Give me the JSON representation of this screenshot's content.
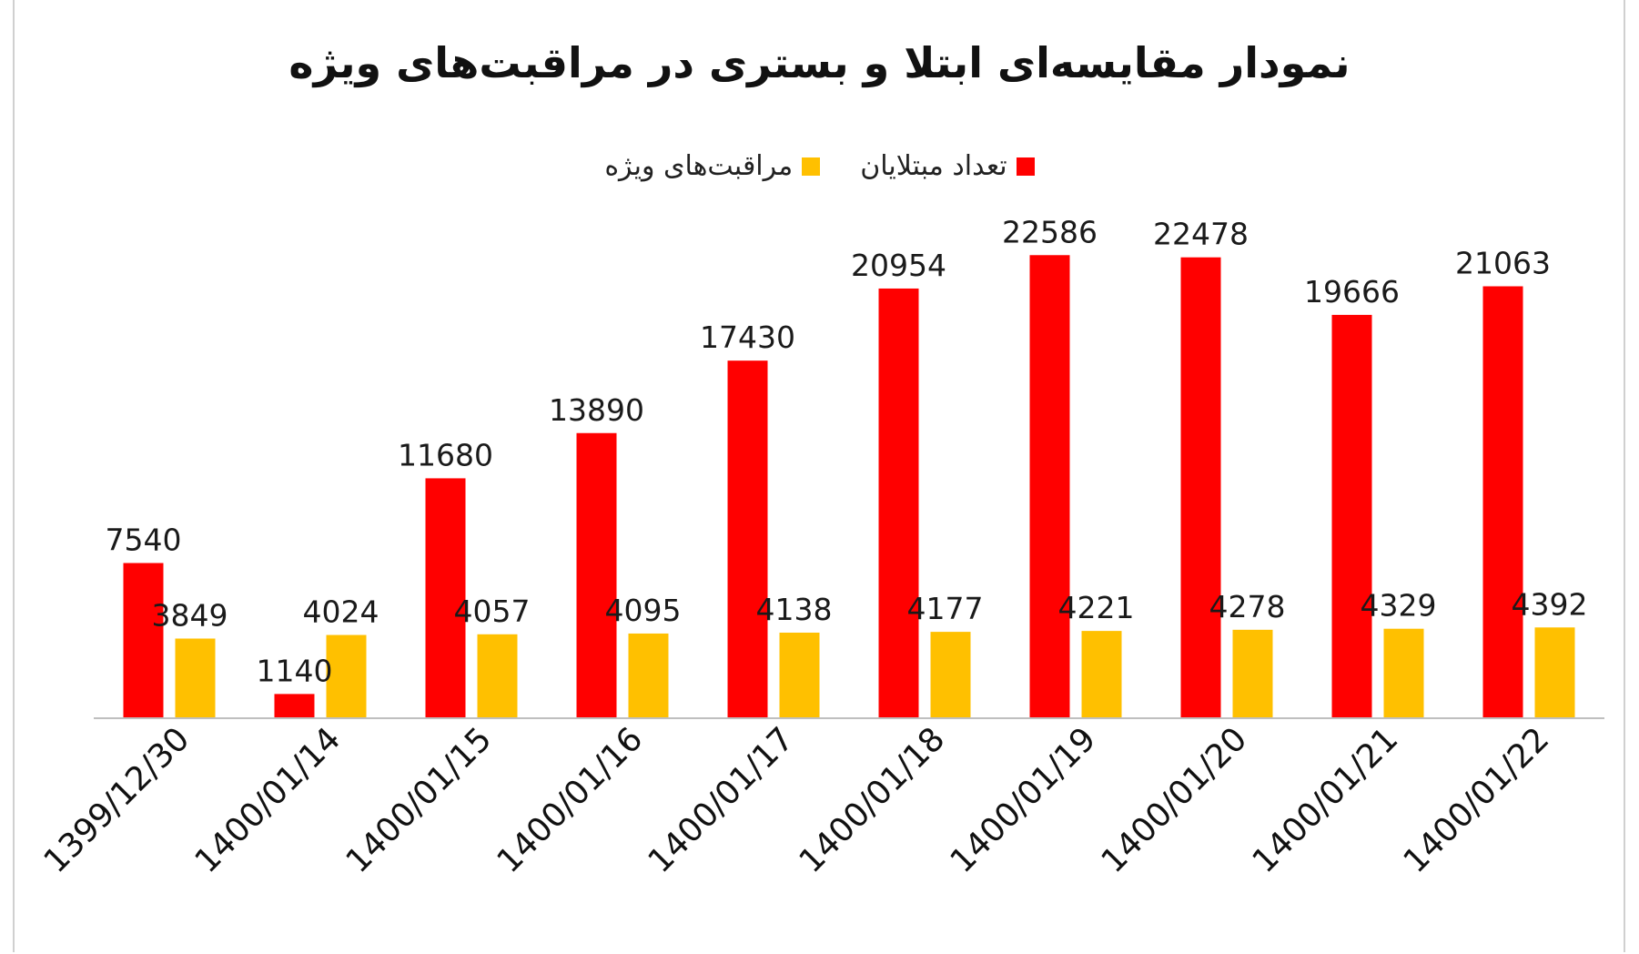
{
  "chart_data": {
    "type": "bar",
    "title": "نمودار مقایسه‌ای ابتلا و بستری در مراقبت‌های ویژه",
    "xlabel": "",
    "ylabel": "",
    "categories": [
      "1399/12/30",
      "1400/01/14",
      "1400/01/15",
      "1400/01/16",
      "1400/01/17",
      "1400/01/18",
      "1400/01/19",
      "1400/01/20",
      "1400/01/21",
      "1400/01/22"
    ],
    "series": [
      {
        "name": "تعداد مبتلایان",
        "color": "#ff0000",
        "values": [
          7540,
          1140,
          11680,
          13890,
          17430,
          20954,
          22586,
          22478,
          19666,
          21063
        ]
      },
      {
        "name": "مراقبت‌های ویژه",
        "color": "#ffc000",
        "values": [
          3849,
          4024,
          4057,
          4095,
          4138,
          4177,
          4221,
          4278,
          4329,
          4392
        ]
      }
    ],
    "ylim": [
      0,
      25000
    ],
    "grid": false,
    "legend": "top-center",
    "data_labels": true,
    "x_tick_rotation": -45
  }
}
